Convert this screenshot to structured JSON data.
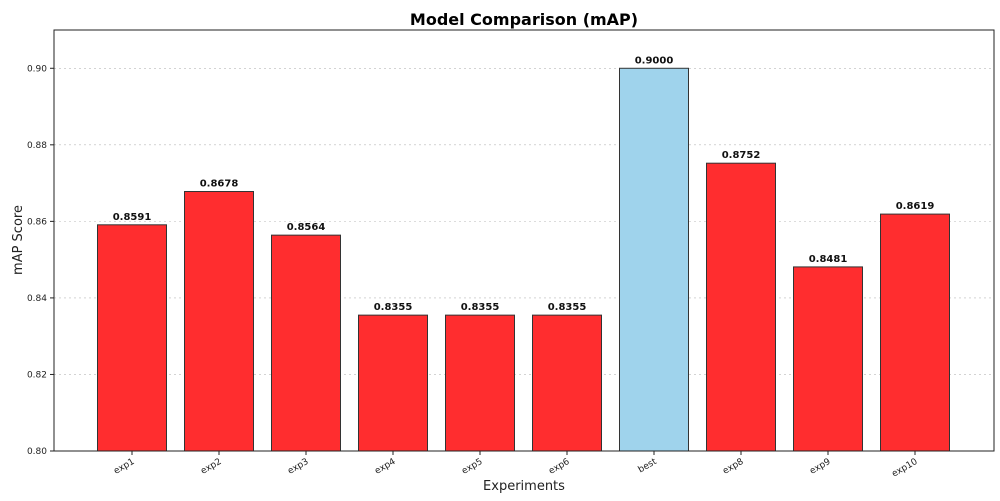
{
  "chart_data": {
    "type": "bar",
    "title": "Model Comparison (mAP)",
    "xlabel": "Experiments",
    "ylabel": "mAP Score",
    "categories": [
      "exp1",
      "exp2",
      "exp3",
      "exp4",
      "exp5",
      "exp6",
      "best",
      "exp8",
      "exp9",
      "exp10"
    ],
    "values": [
      0.8591,
      0.8678,
      0.8564,
      0.8355,
      0.8355,
      0.8355,
      0.9,
      0.8752,
      0.8481,
      0.8619
    ],
    "value_labels": [
      "0.8591",
      "0.8678",
      "0.8564",
      "0.8355",
      "0.8355",
      "0.8355",
      "0.9000",
      "0.8752",
      "0.8481",
      "0.8619"
    ],
    "ylim": [
      0.8,
      0.91
    ],
    "yticks": [
      0.8,
      0.82,
      0.84,
      0.86,
      0.88,
      0.9
    ],
    "ytick_labels": [
      "0.80",
      "0.82",
      "0.84",
      "0.86",
      "0.88",
      "0.90"
    ],
    "grid": "y-dashed",
    "colors": {
      "default_bar": "#ff2d2f",
      "highlight_bar": "#9fd3ec",
      "edge": "#333333"
    },
    "highlight_category": "best"
  }
}
